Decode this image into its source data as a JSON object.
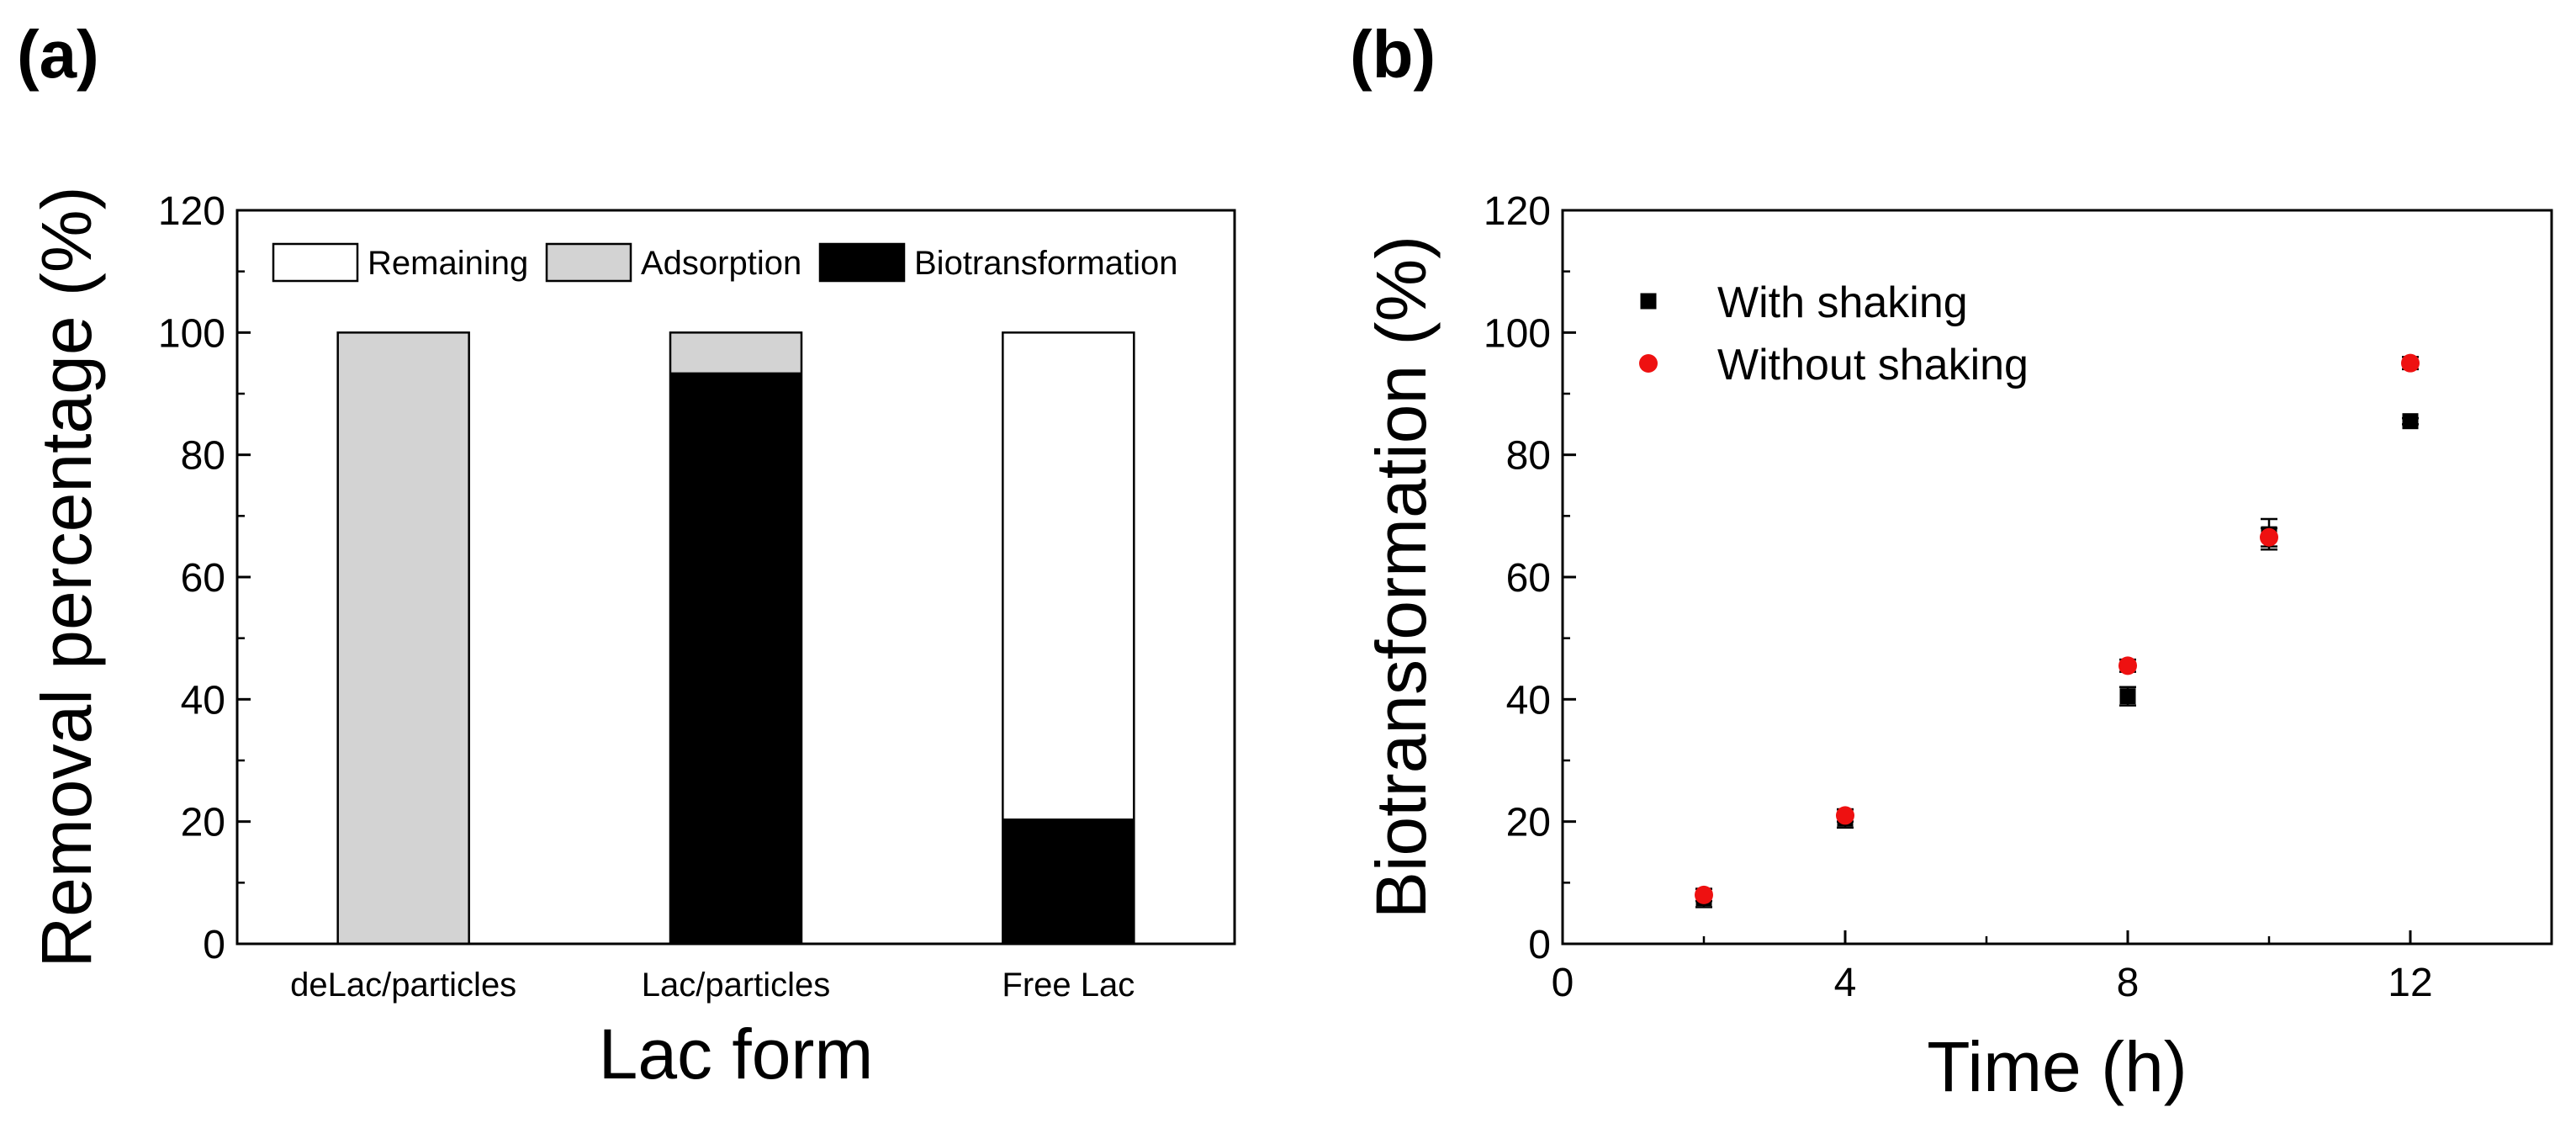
{
  "panel_labels": {
    "a": "(a)",
    "b": "(b)"
  },
  "colors": {
    "remaining": "#ffffff",
    "adsorption": "#d3d3d3",
    "biotransformation": "#000000",
    "with_shaking": "#000000",
    "without_shaking": "#ee1111",
    "axis": "#000000"
  },
  "chart_data": [
    {
      "id": "a",
      "type": "bar",
      "stacked": true,
      "title": "",
      "xlabel": "Lac form",
      "ylabel": "Removal percentage (%)",
      "ylim": [
        0,
        120
      ],
      "yticks": [
        0,
        20,
        40,
        60,
        80,
        100,
        120
      ],
      "categories": [
        "deLac/particles",
        "Lac/particles",
        "Free Lac"
      ],
      "legend_position": "top",
      "series": [
        {
          "name": "Biotransformation",
          "color": "#000000",
          "values": [
            0,
            93.5,
            20.5
          ]
        },
        {
          "name": "Adsorption",
          "color": "#d3d3d3",
          "values": [
            100,
            6.5,
            0
          ]
        },
        {
          "name": "Remaining",
          "color": "#ffffff",
          "values": [
            0,
            0,
            79.5
          ]
        }
      ],
      "legend_order": [
        "Remaining",
        "Adsorption",
        "Biotransformation"
      ]
    },
    {
      "id": "b",
      "type": "scatter",
      "title": "",
      "xlabel": "Time (h)",
      "ylabel": "Biotransformation (%)",
      "xlim": [
        0,
        14
      ],
      "ylim": [
        0,
        120
      ],
      "xticks": [
        0,
        4,
        8,
        12
      ],
      "yticks": [
        0,
        20,
        40,
        60,
        80,
        100,
        120
      ],
      "legend_position": "top-left",
      "series": [
        {
          "name": "With shaking",
          "marker": "square",
          "color": "#000000",
          "x": [
            2,
            4,
            8,
            10,
            12
          ],
          "y": [
            7.5,
            20.5,
            40.5,
            67,
            85.5
          ],
          "err": [
            1.5,
            1.5,
            1.5,
            2.5,
            0.5
          ]
        },
        {
          "name": "Without shaking",
          "marker": "circle",
          "color": "#ee1111",
          "x": [
            2,
            4,
            8,
            10,
            12
          ],
          "y": [
            8,
            21,
            45.5,
            66.5,
            95
          ],
          "err": [
            1.0,
            1.0,
            1.0,
            1.5,
            1.0
          ]
        }
      ]
    }
  ]
}
